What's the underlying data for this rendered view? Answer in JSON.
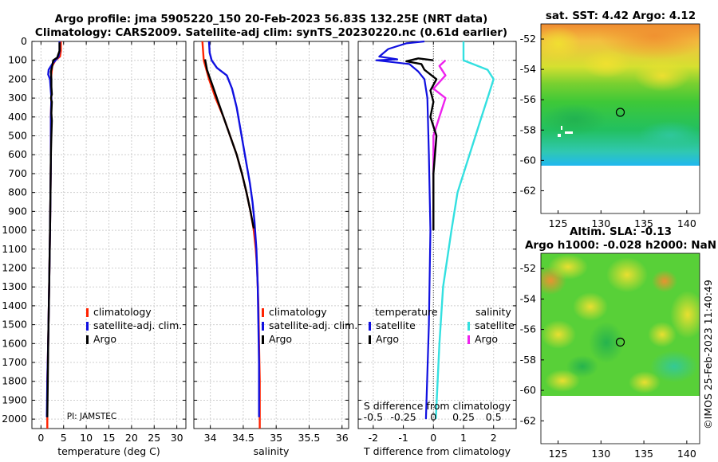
{
  "figure": {
    "title_line1": "Argo profile: jma 5905220_150 20-Feb-2023 56.83S 132.25E (NRT data)",
    "title_line2": "Climatology: CARS2009. Satellite-adj clim: synTS_20230220.nc (0.61d earlier)",
    "timestamp": "©IMOS 25-Feb-2023 11:40:49"
  },
  "colors": {
    "climatology": "#ff2200",
    "satellite": "#1010e0",
    "argo": "#000000",
    "sal_satellite": "#33e0e0",
    "sal_argo": "#ee22ee",
    "grid": "#cfcfcf"
  },
  "chart_data": [
    {
      "id": "temperature",
      "type": "line",
      "xlabel": "temperature (deg C)",
      "ylabel": "",
      "xlim": [
        -2,
        32
      ],
      "ylim": [
        2050,
        0
      ],
      "xticks": [
        0,
        5,
        10,
        15,
        20,
        25,
        30
      ],
      "yticks": [
        0,
        100,
        200,
        300,
        400,
        500,
        600,
        700,
        800,
        900,
        1000,
        1100,
        1200,
        1300,
        1400,
        1500,
        1600,
        1700,
        1800,
        1900,
        2000
      ],
      "annotation": "PI: JAMSTEC",
      "legend": [
        "climatology",
        "satellite-adj. clim.",
        "Argo"
      ],
      "series": [
        {
          "name": "climatology",
          "points": [
            [
              4.4,
              0
            ],
            [
              4.4,
              50
            ],
            [
              4.2,
              80
            ],
            [
              3.2,
              100
            ],
            [
              2.5,
              130
            ],
            [
              2.2,
              200
            ],
            [
              2.3,
              300
            ],
            [
              2.2,
              400
            ],
            [
              2.2,
              600
            ],
            [
              2.1,
              800
            ],
            [
              2.0,
              1000
            ],
            [
              1.8,
              1300
            ],
            [
              1.6,
              1600
            ],
            [
              1.4,
              1800
            ],
            [
              1.4,
              2000
            ],
            [
              1.4,
              2050
            ]
          ]
        },
        {
          "name": "satellite-adj. clim.",
          "points": [
            [
              4.1,
              0
            ],
            [
              4.1,
              50
            ],
            [
              3.9,
              80
            ],
            [
              3.2,
              100
            ],
            [
              2.5,
              120
            ],
            [
              1.7,
              150
            ],
            [
              1.6,
              175
            ],
            [
              2.0,
              200
            ],
            [
              2.3,
              300
            ],
            [
              2.2,
              400
            ],
            [
              2.2,
              600
            ],
            [
              2.1,
              800
            ],
            [
              2.0,
              1000
            ],
            [
              1.8,
              1300
            ],
            [
              1.6,
              1600
            ],
            [
              1.4,
              1800
            ],
            [
              1.3,
              1990
            ]
          ]
        },
        {
          "name": "Argo",
          "points": [
            [
              4.1,
              5
            ],
            [
              4.1,
              50
            ],
            [
              3.8,
              70
            ],
            [
              3.6,
              85
            ],
            [
              2.7,
              100
            ],
            [
              2.5,
              130
            ],
            [
              2.2,
              160
            ],
            [
              2.3,
              200
            ],
            [
              2.3,
              240
            ],
            [
              2.4,
              280
            ],
            [
              2.2,
              300
            ],
            [
              2.4,
              320
            ],
            [
              2.3,
              380
            ],
            [
              2.4,
              420
            ],
            [
              2.3,
              500
            ],
            [
              2.2,
              600
            ],
            [
              2.1,
              800
            ],
            [
              2.0,
              1000
            ],
            [
              1.8,
              1300
            ],
            [
              1.6,
              1600
            ],
            [
              1.5,
              1800
            ],
            [
              1.4,
              1990
            ]
          ]
        }
      ]
    },
    {
      "id": "salinity",
      "type": "line",
      "xlabel": "salinity",
      "ylabel": "",
      "xlim": [
        33.75,
        36.1
      ],
      "ylim": [
        2050,
        0
      ],
      "xticks": [
        34,
        34.5,
        35,
        35.5,
        36
      ],
      "xticklabels": [
        "34",
        "34.5",
        "35",
        "35.5",
        "36"
      ],
      "legend": [
        "climatology",
        "satellite-adj. clim.",
        "Argo"
      ],
      "series": [
        {
          "name": "climatology",
          "points": [
            [
              33.88,
              0
            ],
            [
              33.9,
              100
            ],
            [
              33.98,
              200
            ],
            [
              34.08,
              300
            ],
            [
              34.2,
              400
            ],
            [
              34.3,
              500
            ],
            [
              34.4,
              600
            ],
            [
              34.48,
              700
            ],
            [
              34.55,
              800
            ],
            [
              34.61,
              900
            ],
            [
              34.66,
              1000
            ],
            [
              34.69,
              1100
            ],
            [
              34.71,
              1200
            ],
            [
              34.73,
              1400
            ],
            [
              34.74,
              1600
            ],
            [
              34.75,
              1800
            ],
            [
              34.75,
              2050
            ]
          ]
        },
        {
          "name": "satellite-adj. clim.",
          "points": [
            [
              33.98,
              0
            ],
            [
              33.99,
              60
            ],
            [
              34.02,
              100
            ],
            [
              34.1,
              140
            ],
            [
              34.25,
              180
            ],
            [
              34.33,
              250
            ],
            [
              34.4,
              350
            ],
            [
              34.45,
              450
            ],
            [
              34.5,
              550
            ],
            [
              34.55,
              650
            ],
            [
              34.6,
              750
            ],
            [
              34.64,
              850
            ],
            [
              34.67,
              950
            ],
            [
              34.7,
              1100
            ],
            [
              34.72,
              1300
            ],
            [
              34.73,
              1500
            ],
            [
              34.74,
              1700
            ],
            [
              34.74,
              1990
            ]
          ]
        },
        {
          "name": "Argo",
          "points": [
            [
              33.92,
              95
            ],
            [
              33.95,
              150
            ],
            [
              34.0,
              200
            ],
            [
              34.05,
              250
            ],
            [
              34.12,
              320
            ],
            [
              34.2,
              400
            ],
            [
              34.3,
              500
            ],
            [
              34.4,
              600
            ],
            [
              34.48,
              700
            ],
            [
              34.55,
              800
            ],
            [
              34.61,
              900
            ],
            [
              34.66,
              990
            ]
          ]
        }
      ]
    },
    {
      "id": "differences",
      "type": "line",
      "xlabel": "T difference from climatology",
      "x2label": "S difference from climatology",
      "xlim": [
        -2.5,
        2.75
      ],
      "ylim": [
        2050,
        0
      ],
      "xticks": [
        -2,
        -1,
        0,
        1,
        2
      ],
      "x2ticks": [
        -0.5,
        -0.25,
        0,
        0.25,
        0.5
      ],
      "x2ticklabels": [
        "-0.5",
        "-0.25",
        "0",
        "0.25",
        "0.5"
      ],
      "legend_temperature_title": "temperature",
      "legend_salinity_title": "salinity",
      "legend_temperature": [
        "satellite",
        "Argo"
      ],
      "legend_salinity": [
        "satellite",
        "Argo"
      ],
      "series": [
        {
          "name": "T satellite",
          "points": [
            [
              -0.3,
              0
            ],
            [
              -0.9,
              10
            ],
            [
              -1.5,
              40
            ],
            [
              -1.8,
              80
            ],
            [
              -1.2,
              95
            ],
            [
              -1.9,
              100
            ],
            [
              -0.8,
              120
            ],
            [
              -0.5,
              160
            ],
            [
              -0.3,
              200
            ],
            [
              -0.2,
              300
            ],
            [
              -0.15,
              600
            ],
            [
              -0.1,
              1000
            ],
            [
              -0.15,
              1500
            ],
            [
              -0.25,
              2000
            ]
          ]
        },
        {
          "name": "T Argo",
          "points": [
            [
              0.0,
              100
            ],
            [
              -0.5,
              90
            ],
            [
              -0.9,
              105
            ],
            [
              -0.4,
              120
            ],
            [
              -0.3,
              150
            ],
            [
              0.1,
              200
            ],
            [
              -0.1,
              260
            ],
            [
              0.0,
              320
            ],
            [
              -0.1,
              400
            ],
            [
              0.1,
              500
            ],
            [
              0.0,
              700
            ],
            [
              0.0,
              1000
            ]
          ]
        },
        {
          "name": "S satellite",
          "points": [
            [
              0.25,
              0
            ],
            [
              0.25,
              100
            ],
            [
              0.45,
              150
            ],
            [
              0.5,
              200
            ],
            [
              0.45,
              300
            ],
            [
              0.4,
              400
            ],
            [
              0.3,
              600
            ],
            [
              0.2,
              800
            ],
            [
              0.15,
              1000
            ],
            [
              0.08,
              1300
            ],
            [
              0.05,
              1600
            ],
            [
              0.02,
              2000
            ]
          ]
        },
        {
          "name": "S Argo",
          "points": [
            [
              0.1,
              100
            ],
            [
              0.05,
              130
            ],
            [
              0.1,
              180
            ],
            [
              0.0,
              250
            ],
            [
              0.1,
              300
            ],
            [
              0.05,
              400
            ],
            [
              0.0,
              500
            ],
            [
              0.0,
              700
            ],
            [
              0.0,
              990
            ]
          ]
        }
      ]
    },
    {
      "id": "sst_map",
      "type": "heatmap",
      "title": "sat. SST: 4.42 Argo: 4.12",
      "xlim": [
        123,
        141.5
      ],
      "ylim": [
        -63.5,
        -51
      ],
      "xticks": [
        125,
        130,
        135,
        140
      ],
      "yticks": [
        -52,
        -54,
        -56,
        -58,
        -60,
        -62
      ],
      "marker": {
        "lon": 132.25,
        "lat": -56.83
      }
    },
    {
      "id": "sla_map",
      "type": "heatmap",
      "title": "Altim. SLA: -0.13",
      "subtitle": "Argo h1000: -0.028 h2000: NaN",
      "xlim": [
        123,
        141.5
      ],
      "ylim": [
        -63.5,
        -51
      ],
      "xticks": [
        125,
        130,
        135,
        140
      ],
      "yticks": [
        -52,
        -54,
        -56,
        -58,
        -60,
        -62
      ],
      "marker": {
        "lon": 132.25,
        "lat": -56.83
      }
    }
  ]
}
